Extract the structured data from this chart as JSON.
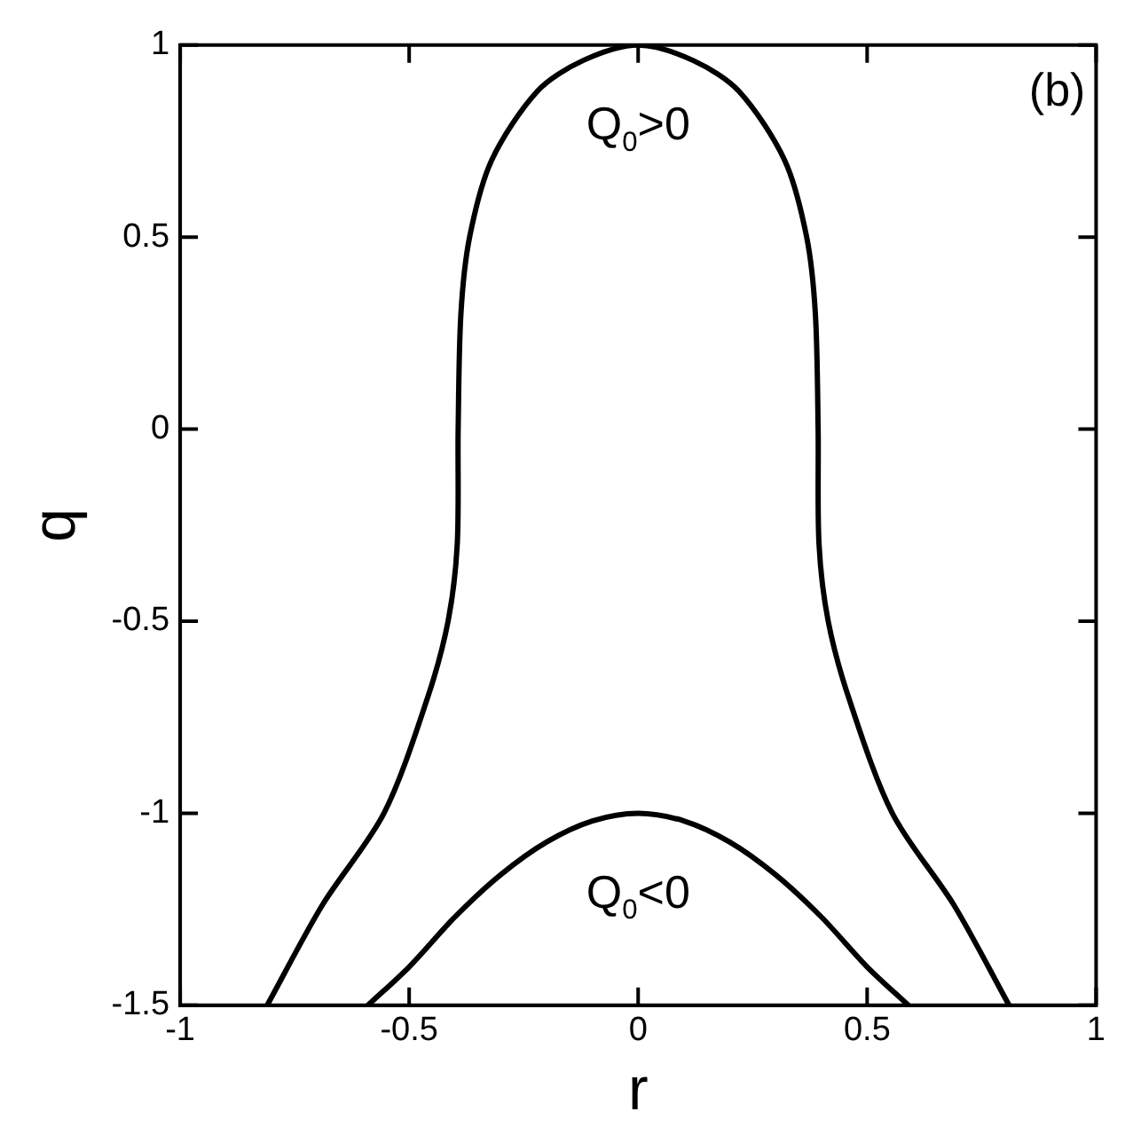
{
  "chart_data": {
    "type": "line",
    "xlabel": "r",
    "ylabel": "q",
    "xlim": [
      -1,
      1
    ],
    "ylim": [
      -1.5,
      1
    ],
    "xticks": [
      -1,
      -0.5,
      0,
      0.5,
      1
    ],
    "yticks": [
      -1.5,
      -1,
      -0.5,
      0,
      0.5,
      1
    ],
    "grid": false,
    "legend": false,
    "marker": "none",
    "line_style": "solid",
    "series": [
      {
        "color": "#000000",
        "x": [
          -0.81,
          -0.69,
          -0.555,
          -0.46,
          -0.415,
          -0.395,
          -0.393,
          -0.387,
          -0.368,
          -0.32,
          -0.22,
          -0.12,
          0,
          0.12,
          0.22,
          0.32,
          0.368,
          0.387,
          0.393,
          0.395,
          0.415,
          0.46,
          0.555,
          0.69,
          0.81
        ],
        "values": [
          -1.5,
          -1.24,
          -1,
          -0.7,
          -0.5,
          -0.3,
          0,
          0.3,
          0.5,
          0.7,
          0.88,
          0.96,
          1,
          0.96,
          0.88,
          0.7,
          0.5,
          0.3,
          0,
          -0.3,
          -0.5,
          -0.7,
          -1,
          -1.24,
          -1.5
        ]
      },
      {
        "color": "#000000",
        "x": [
          -0.59,
          -0.5,
          -0.4,
          -0.3,
          -0.2,
          -0.1,
          0,
          0.1,
          0.2,
          0.3,
          0.4,
          0.5,
          0.59
        ],
        "values": [
          -1.5,
          -1.4,
          -1.27,
          -1.16,
          -1.075,
          -1.02,
          -1,
          -1.02,
          -1.075,
          -1.16,
          -1.27,
          -1.4,
          -1.5
        ]
      }
    ],
    "annotations": [
      "(b)",
      "Q$_{0}$>0",
      "Q$_{0}$<0"
    ]
  }
}
